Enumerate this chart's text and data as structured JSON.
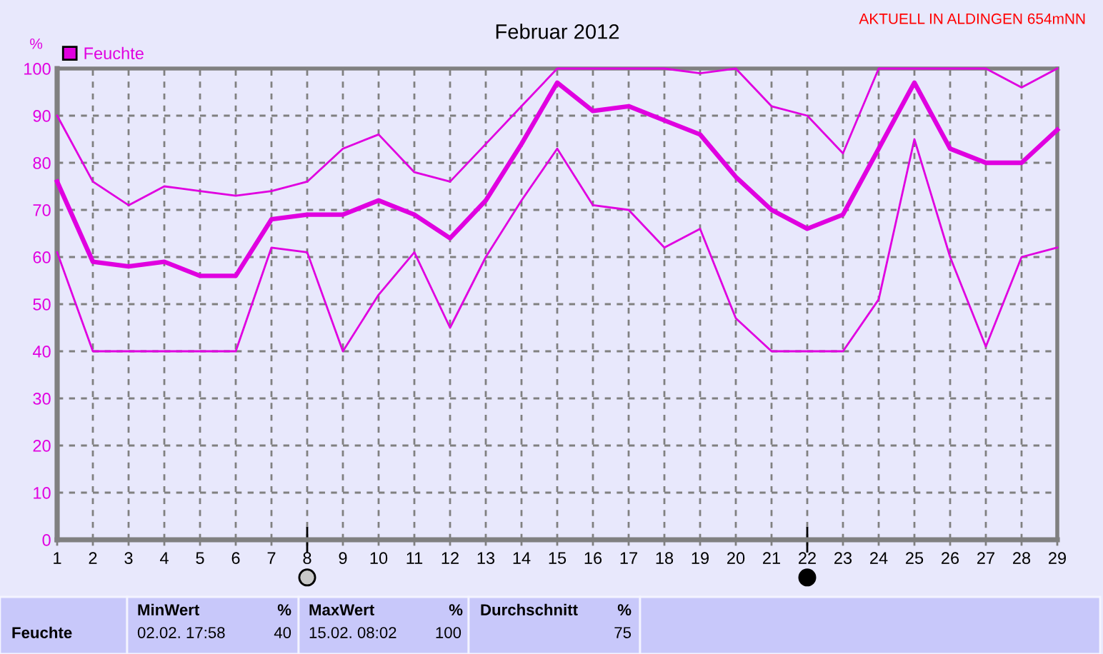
{
  "chart_data": {
    "type": "line",
    "title": "Februar 2012",
    "ylabel": "%",
    "x": [
      1,
      2,
      3,
      4,
      5,
      6,
      7,
      8,
      9,
      10,
      11,
      12,
      13,
      14,
      15,
      16,
      17,
      18,
      19,
      20,
      21,
      22,
      23,
      24,
      25,
      26,
      27,
      28,
      29
    ],
    "xlim": [
      1,
      29
    ],
    "xticks": [
      1,
      2,
      3,
      4,
      5,
      6,
      7,
      8,
      9,
      10,
      11,
      12,
      13,
      14,
      15,
      16,
      17,
      18,
      19,
      20,
      21,
      22,
      23,
      24,
      25,
      26,
      27,
      28,
      29
    ],
    "ylim": [
      0,
      100
    ],
    "yticks": [
      0,
      10,
      20,
      30,
      40,
      50,
      60,
      70,
      80,
      90,
      100
    ],
    "grid": true,
    "legend": "top left",
    "line_style": "solid",
    "series": [
      {
        "name": "Feuchte",
        "color": "#e000e0",
        "values": [
          76,
          59,
          58,
          59,
          56,
          56,
          68,
          69,
          69,
          72,
          69,
          64,
          72,
          84,
          97,
          91,
          92,
          89,
          86,
          77,
          70,
          66,
          69,
          83,
          97,
          83,
          80,
          80,
          87
        ]
      },
      {
        "color": "#e000e0",
        "values": [
          90,
          76,
          71,
          75,
          74,
          73,
          74,
          76,
          83,
          86,
          78,
          76,
          84,
          92,
          100,
          100,
          100,
          100,
          99,
          100,
          92,
          90,
          82,
          100,
          100,
          100,
          100,
          96,
          100
        ]
      },
      {
        "color": "#e000e0",
        "values": [
          61,
          40,
          40,
          40,
          40,
          40,
          62,
          61,
          40,
          52,
          61,
          45,
          60,
          72,
          83,
          71,
          70,
          62,
          66,
          47,
          40,
          40,
          40,
          51,
          85,
          60,
          41,
          60,
          62
        ]
      }
    ],
    "annotations": [
      "AKTUELL IN ALDINGEN 654mNN",
      "Feuchte",
      "MinWert",
      "%",
      "02.02. 17:58",
      "40",
      "MaxWert",
      "%",
      "15.02. 08:02",
      "100",
      "Durchschnitt",
      "%",
      "75"
    ]
  }
}
